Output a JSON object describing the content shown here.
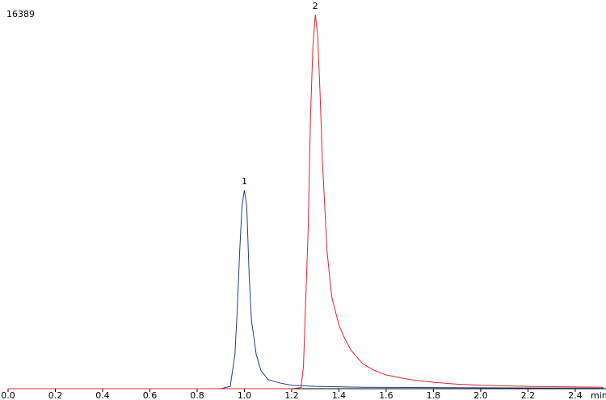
{
  "chart_data": {
    "type": "line",
    "x_label": "min",
    "xlim": [
      0,
      2.52
    ],
    "xticks": [
      {
        "value": 0,
        "label": "0.0"
      },
      0.2,
      0.4,
      0.6,
      0.8,
      {
        "value": 1,
        "label": "1.0"
      },
      1.2,
      1.4,
      1.6,
      1.8,
      {
        "value": 2,
        "label": "2.0"
      },
      2.2,
      2.4
    ],
    "ylim": [
      0,
      16389
    ],
    "yticks": [
      16389
    ],
    "series": [
      {
        "name": "1",
        "color": "#1f3f8f",
        "x": [
          0,
          0.9,
          0.94,
          0.96,
          0.97,
          0.98,
          0.99,
          1.0,
          1.01,
          1.02,
          1.03,
          1.05,
          1.07,
          1.1,
          1.15,
          1.2,
          1.3,
          1.5,
          2.0,
          2.52
        ],
        "values": [
          0,
          0,
          100,
          1500,
          3500,
          6000,
          8000,
          8700,
          8000,
          5000,
          3000,
          1500,
          800,
          400,
          250,
          150,
          100,
          60,
          40,
          20
        ]
      },
      {
        "name": "2",
        "color": "#e8202a",
        "x": [
          0,
          1.2,
          1.24,
          1.25,
          1.27,
          1.28,
          1.29,
          1.3,
          1.31,
          1.32,
          1.33,
          1.35,
          1.37,
          1.4,
          1.42,
          1.45,
          1.5,
          1.55,
          1.6,
          1.7,
          1.8,
          1.9,
          2.0,
          2.2,
          2.52
        ],
        "values": [
          0,
          0,
          50,
          1000,
          7000,
          12000,
          15000,
          16389,
          15500,
          13000,
          10000,
          6000,
          4000,
          2800,
          2300,
          1700,
          1100,
          800,
          600,
          400,
          280,
          200,
          150,
          100,
          60
        ]
      }
    ]
  }
}
